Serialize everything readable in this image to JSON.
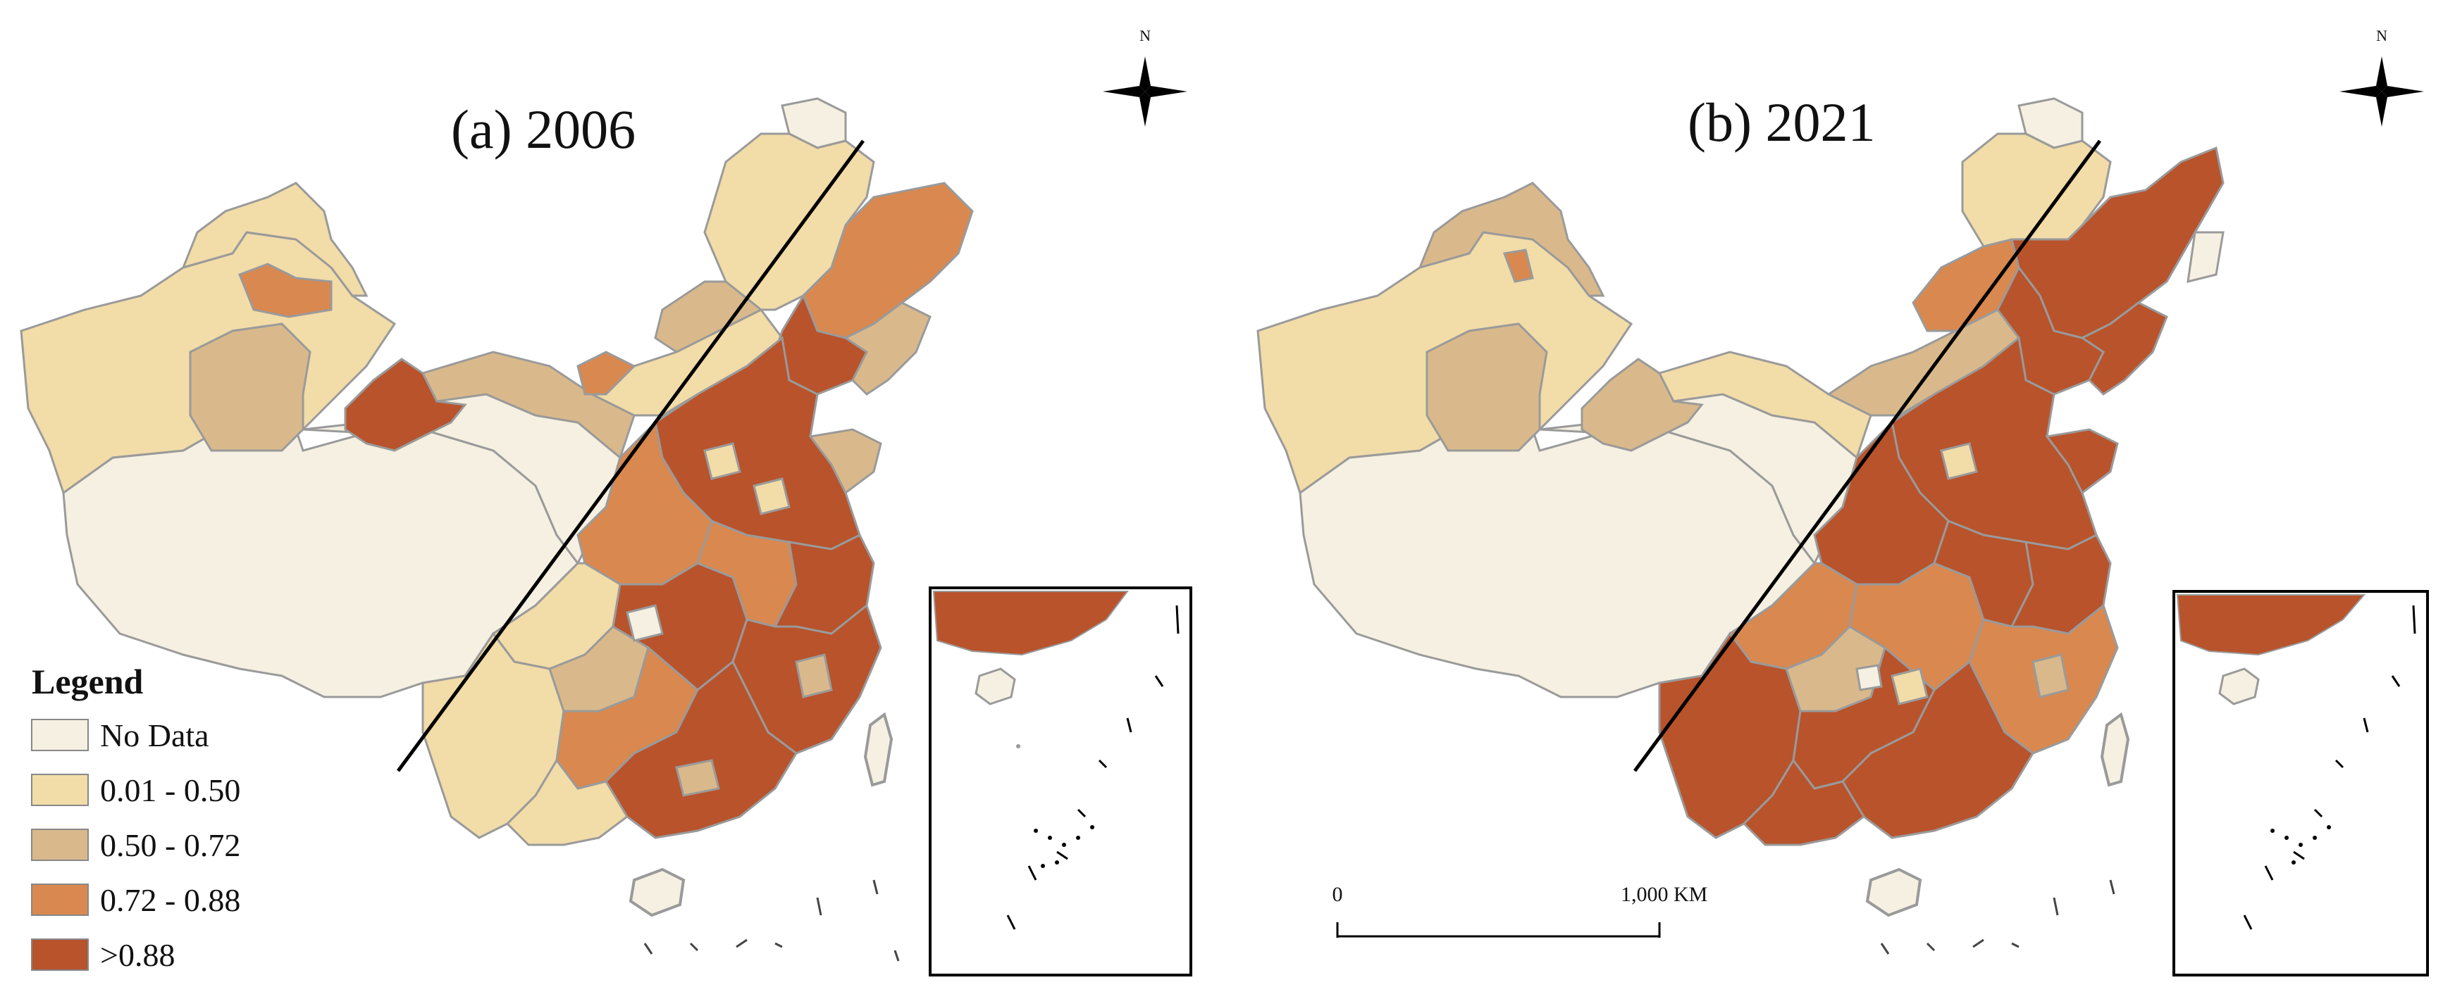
{
  "panels": [
    {
      "id": "a",
      "title": "(a) 2006"
    },
    {
      "id": "b",
      "title": "(b) 2021"
    }
  ],
  "north_arrow": {
    "label": "N"
  },
  "legend": {
    "title": "Legend",
    "items": [
      {
        "label": "No Data",
        "color": "#f5f0e1"
      },
      {
        "label": "0.01 - 0.50",
        "color": "#f2dca8"
      },
      {
        "label": "0.50 - 0.72",
        "color": "#d9b98b"
      },
      {
        "label": "0.72 - 0.88",
        "color": "#d9884f"
      },
      {
        "label": ">0.88",
        "color": "#b8532c"
      }
    ]
  },
  "scale_bar": {
    "start_label": "0",
    "end_label": "1,000 KM"
  },
  "colors": {
    "outline": "#9a9a9a",
    "line": "#000000"
  }
}
